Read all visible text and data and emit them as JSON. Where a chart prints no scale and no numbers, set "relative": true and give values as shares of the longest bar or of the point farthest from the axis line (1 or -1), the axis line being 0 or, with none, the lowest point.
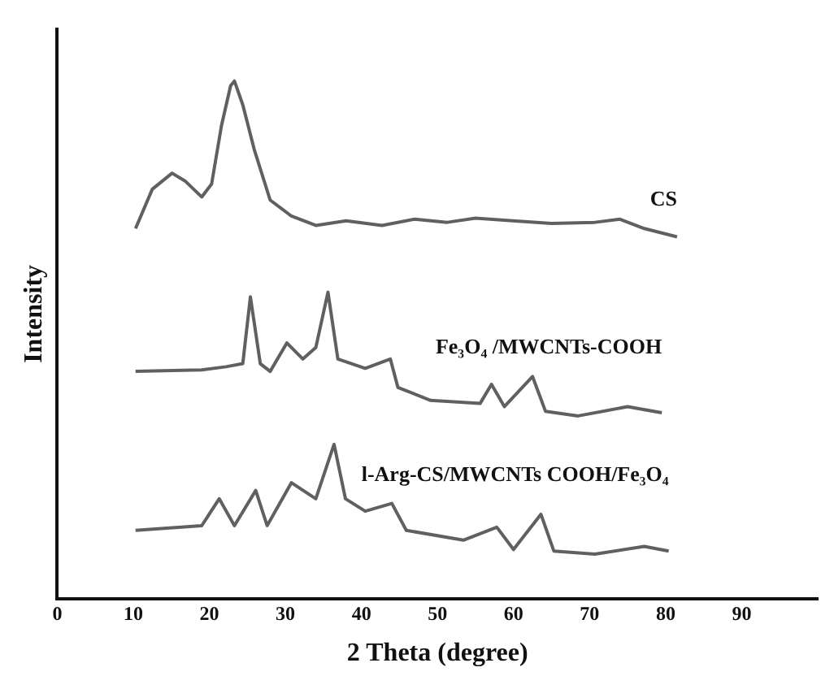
{
  "chart_data": {
    "type": "line",
    "relative": true,
    "xlabel": "2 Theta (degree)",
    "ylabel": "Intensity",
    "xlim": [
      0,
      100
    ],
    "xticks": [
      0,
      10,
      20,
      30,
      40,
      50,
      60,
      70,
      80,
      90
    ],
    "grid": false,
    "legend": false,
    "marker": "none",
    "line_style": "solid",
    "series": [
      {
        "name": "CS",
        "color": "#606060",
        "x": [
          10.3,
          12.5,
          15.1,
          16.8,
          19,
          20.3,
          21.6,
          22.8,
          23.3,
          24.4,
          25.9,
          28,
          30.8,
          34,
          38,
          42.7,
          47,
          51.3,
          55,
          59.9,
          65,
          70.7,
          74,
          77.2,
          81.5
        ],
        "values": [
          0.715,
          0.791,
          0.822,
          0.807,
          0.776,
          0.801,
          0.914,
          0.991,
          1.0,
          0.954,
          0.868,
          0.77,
          0.739,
          0.721,
          0.73,
          0.721,
          0.733,
          0.727,
          0.735,
          0.73,
          0.725,
          0.727,
          0.733,
          0.715,
          0.699
        ]
      },
      {
        "name": "Fe₃O₄ /MWCNTs-COOH",
        "color": "#606060",
        "x": [
          10.3,
          19,
          22.2,
          24.4,
          25.4,
          26.7,
          28,
          30.2,
          32.3,
          34,
          35.6,
          36.9,
          40.5,
          43.8,
          44.8,
          49.1,
          55.6,
          57.1,
          58.8,
          62.5,
          64.2,
          68.5,
          75,
          79.5
        ],
        "values": [
          0.439,
          0.442,
          0.448,
          0.454,
          0.583,
          0.454,
          0.439,
          0.494,
          0.463,
          0.485,
          0.592,
          0.463,
          0.445,
          0.463,
          0.408,
          0.383,
          0.377,
          0.414,
          0.371,
          0.429,
          0.362,
          0.353,
          0.371,
          0.359
        ]
      },
      {
        "name": "l-Arg-CS/MWCNTs COOH/Fe₃O₄",
        "color": "#606060",
        "x": [
          10.3,
          19,
          21.3,
          23.3,
          26.1,
          27.6,
          30.8,
          34,
          36.4,
          37.9,
          40.5,
          44,
          45.9,
          53.4,
          57.8,
          60,
          63.6,
          65.3,
          70.7,
          77.2,
          80.4
        ],
        "values": [
          0.132,
          0.141,
          0.193,
          0.141,
          0.209,
          0.141,
          0.224,
          0.193,
          0.298,
          0.193,
          0.169,
          0.184,
          0.132,
          0.113,
          0.138,
          0.095,
          0.163,
          0.092,
          0.086,
          0.101,
          0.092
        ]
      }
    ]
  }
}
